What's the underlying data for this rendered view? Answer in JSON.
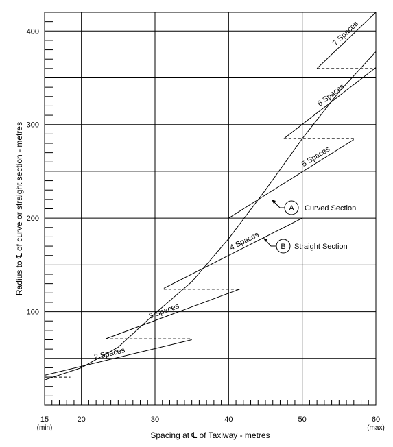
{
  "chart_data": {
    "type": "line",
    "xlabel": "Spacing at ℄ of Taxiway - metres",
    "ylabel": "Radius to ℄ of curve or straight section - metres",
    "xlim": [
      15,
      60
    ],
    "ylim": [
      0,
      420
    ],
    "x_ticks": [
      {
        "value": 15,
        "label": "15",
        "sublabel": "(min)"
      },
      {
        "value": 20,
        "label": "20"
      },
      {
        "value": 30,
        "label": "30"
      },
      {
        "value": 40,
        "label": "40"
      },
      {
        "value": 50,
        "label": "50"
      },
      {
        "value": 60,
        "label": "60",
        "sublabel": "(max)"
      }
    ],
    "y_ticks": [
      {
        "value": 100,
        "label": "100"
      },
      {
        "value": 200,
        "label": "200"
      },
      {
        "value": 300,
        "label": "300"
      },
      {
        "value": 400,
        "label": "400"
      }
    ],
    "x_gridlines": [
      20,
      30,
      40,
      50
    ],
    "y_gridlines": [
      50,
      100,
      150,
      200,
      250,
      300,
      350,
      400
    ],
    "grid": true,
    "curved_section": {
      "marker": "A",
      "label": "Curved Section",
      "points": [
        [
          15,
          27
        ],
        [
          20,
          40
        ],
        [
          25,
          62
        ],
        [
          30,
          98
        ],
        [
          35,
          132
        ],
        [
          40,
          178
        ],
        [
          45,
          230
        ],
        [
          50,
          285
        ],
        [
          55,
          335
        ],
        [
          60,
          378
        ]
      ]
    },
    "straight_section": {
      "marker": "B",
      "label": "Straight Section"
    },
    "spaces_segments": [
      {
        "label": "2 Spaces",
        "from": [
          15,
          32
        ],
        "to": [
          35,
          70
        ]
      },
      {
        "label": "3 Spaces",
        "from": [
          23.3,
          71
        ],
        "to": [
          41.5,
          124
        ]
      },
      {
        "label": "4 Spaces",
        "from": [
          31.2,
          125
        ],
        "to": [
          50,
          200
        ]
      },
      {
        "label": "5 Spaces",
        "from": [
          40,
          200
        ],
        "to": [
          57,
          284
        ]
      },
      {
        "label": "6 Spaces",
        "from": [
          47.5,
          285
        ],
        "to": [
          60,
          361
        ]
      },
      {
        "label": "7 Spaces",
        "from": [
          52,
          360
        ],
        "to": [
          60,
          420
        ]
      }
    ],
    "dashed_transitions": [
      {
        "from": [
          15,
          30
        ],
        "to": [
          18.5,
          30
        ]
      },
      {
        "from": [
          23.3,
          71
        ],
        "to": [
          35,
          71
        ]
      },
      {
        "from": [
          31.2,
          124
        ],
        "to": [
          41.5,
          124
        ]
      },
      {
        "from": [
          47.5,
          285
        ],
        "to": [
          57,
          285
        ]
      },
      {
        "from": [
          52,
          360
        ],
        "to": [
          60,
          360
        ]
      }
    ]
  }
}
